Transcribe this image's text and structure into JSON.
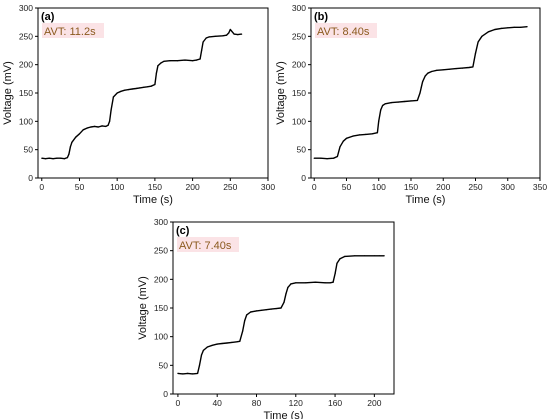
{
  "chart_data": [
    {
      "type": "line",
      "panel": "(a)",
      "annotation": "AVT: 11.2s",
      "xlabel": "Time (s)",
      "ylabel": "Voltage (mV)",
      "xlim": [
        -5,
        300
      ],
      "ylim": [
        0,
        300
      ],
      "xticks": [
        "0",
        "50",
        "100",
        "150",
        "200",
        "250",
        "300"
      ],
      "yticks": [
        "0",
        "50",
        "100",
        "150",
        "200",
        "250",
        "300"
      ],
      "series": [
        {
          "x": [
            0,
            5,
            10,
            15,
            20,
            25,
            30,
            34,
            36,
            38,
            40,
            45,
            50,
            55,
            60,
            65,
            70,
            75,
            80,
            85,
            88,
            90,
            92,
            95,
            100,
            105,
            110,
            115,
            120,
            125,
            130,
            135,
            140,
            145,
            150,
            152,
            154,
            158,
            162,
            170,
            180,
            190,
            200,
            205,
            210,
            212,
            214,
            218,
            222,
            230,
            240,
            245,
            248,
            250,
            255,
            260,
            265
          ],
          "y": [
            35,
            34,
            35,
            34,
            35,
            35,
            34,
            36,
            42,
            55,
            63,
            72,
            78,
            85,
            88,
            90,
            91,
            90,
            92,
            91,
            93,
            100,
            120,
            143,
            150,
            153,
            155,
            156,
            157,
            158,
            159,
            160,
            161,
            162,
            165,
            185,
            198,
            203,
            206,
            207,
            207,
            208,
            207,
            208,
            210,
            225,
            240,
            247,
            249,
            250,
            251,
            252,
            256,
            262,
            254,
            253,
            254
          ]
        }
      ]
    },
    {
      "type": "line",
      "panel": "(b)",
      "annotation": "AVT: 8.40s",
      "xlabel": "Time (s)",
      "ylabel": "Voltage (mV)",
      "xlim": [
        -5,
        350
      ],
      "ylim": [
        0,
        300
      ],
      "xticks": [
        "0",
        "50",
        "100",
        "150",
        "200",
        "250",
        "300",
        "350"
      ],
      "yticks": [
        "0",
        "50",
        "100",
        "150",
        "200",
        "250",
        "300"
      ],
      "series": [
        {
          "x": [
            0,
            10,
            20,
            30,
            36,
            40,
            45,
            50,
            60,
            70,
            80,
            90,
            98,
            100,
            103,
            106,
            110,
            120,
            130,
            140,
            150,
            160,
            164,
            166,
            168,
            172,
            176,
            182,
            190,
            200,
            210,
            220,
            230,
            240,
            246,
            250,
            254,
            260,
            270,
            280,
            290,
            300,
            310,
            320,
            330
          ],
          "y": [
            35,
            35,
            34,
            35,
            38,
            55,
            65,
            70,
            74,
            76,
            77,
            78,
            80,
            100,
            120,
            128,
            131,
            133,
            134,
            135,
            136,
            137,
            150,
            160,
            170,
            180,
            185,
            188,
            190,
            191,
            192,
            193,
            194,
            195,
            196,
            220,
            240,
            250,
            258,
            262,
            264,
            265,
            266,
            266,
            267
          ]
        }
      ]
    },
    {
      "type": "line",
      "panel": "(c)",
      "annotation": "AVT: 7.40s",
      "xlabel": "Time (s)",
      "ylabel": "Voltage (mV)",
      "xlim": [
        -5,
        220
      ],
      "ylim": [
        0,
        300
      ],
      "xticks": [
        "0",
        "40",
        "80",
        "120",
        "160",
        "200"
      ],
      "yticks": [
        "0",
        "50",
        "100",
        "150",
        "200",
        "250",
        "300"
      ],
      "series": [
        {
          "x": [
            0,
            5,
            10,
            15,
            20,
            22,
            24,
            26,
            30,
            35,
            40,
            45,
            50,
            55,
            60,
            63,
            66,
            68,
            70,
            74,
            80,
            85,
            90,
            95,
            100,
            105,
            108,
            110,
            112,
            115,
            120,
            130,
            140,
            150,
            155,
            158,
            160,
            162,
            165,
            170,
            180,
            190,
            200,
            205,
            210
          ],
          "y": [
            36,
            35,
            36,
            35,
            36,
            50,
            68,
            76,
            82,
            85,
            87,
            88,
            89,
            90,
            91,
            92,
            110,
            128,
            138,
            143,
            145,
            146,
            147,
            148,
            149,
            150,
            160,
            175,
            186,
            192,
            194,
            194,
            195,
            194,
            194,
            195,
            210,
            228,
            236,
            240,
            241,
            241,
            241,
            241,
            241
          ]
        }
      ]
    }
  ],
  "colors": {
    "line": "#000000",
    "annotation_text": "#8b5a1e",
    "annotation_bg": "#fbe3e6"
  }
}
